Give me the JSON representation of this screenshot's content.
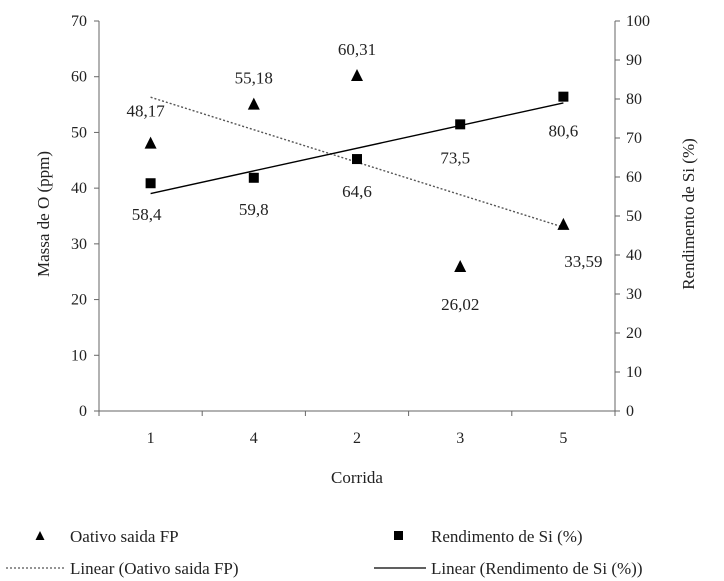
{
  "chart_data": {
    "type": "scatter",
    "categories": [
      "1",
      "4",
      "2",
      "3",
      "5"
    ],
    "xlabel": "Corrida",
    "ylabel_left": "Massa de O (ppm)",
    "ylabel_right": "Rendimento de Si (%)",
    "ylim_left": [
      0,
      70
    ],
    "ylim_right": [
      0,
      100
    ],
    "yticks_left": [
      "0",
      "10",
      "20",
      "30",
      "40",
      "50",
      "60",
      "70"
    ],
    "yticks_right": [
      "0",
      "10",
      "20",
      "30",
      "40",
      "50",
      "60",
      "70",
      "80",
      "90",
      "100"
    ],
    "grid": false,
    "legend_position": "bottom",
    "series": [
      {
        "name": "Oativo saida FP",
        "axis": "left",
        "marker": "triangle",
        "values": [
          48.17,
          55.18,
          60.31,
          26.02,
          33.59
        ],
        "labels": [
          "48,17",
          "55,18",
          "60,31",
          "26,02",
          "33,59"
        ]
      },
      {
        "name": "Rendimento de Si (%)",
        "axis": "right",
        "marker": "square",
        "values": [
          58.4,
          59.8,
          64.6,
          73.5,
          80.6
        ],
        "labels": [
          "58,4",
          "59,8",
          "64,6",
          "73,5",
          "80,6"
        ]
      }
    ],
    "trendlines": [
      {
        "name": "Linear (Oativo saida FP)",
        "series": 0,
        "style": "dotted"
      },
      {
        "name": "Linear (Rendimento de Si (%))",
        "series": 1,
        "style": "solid"
      }
    ]
  }
}
